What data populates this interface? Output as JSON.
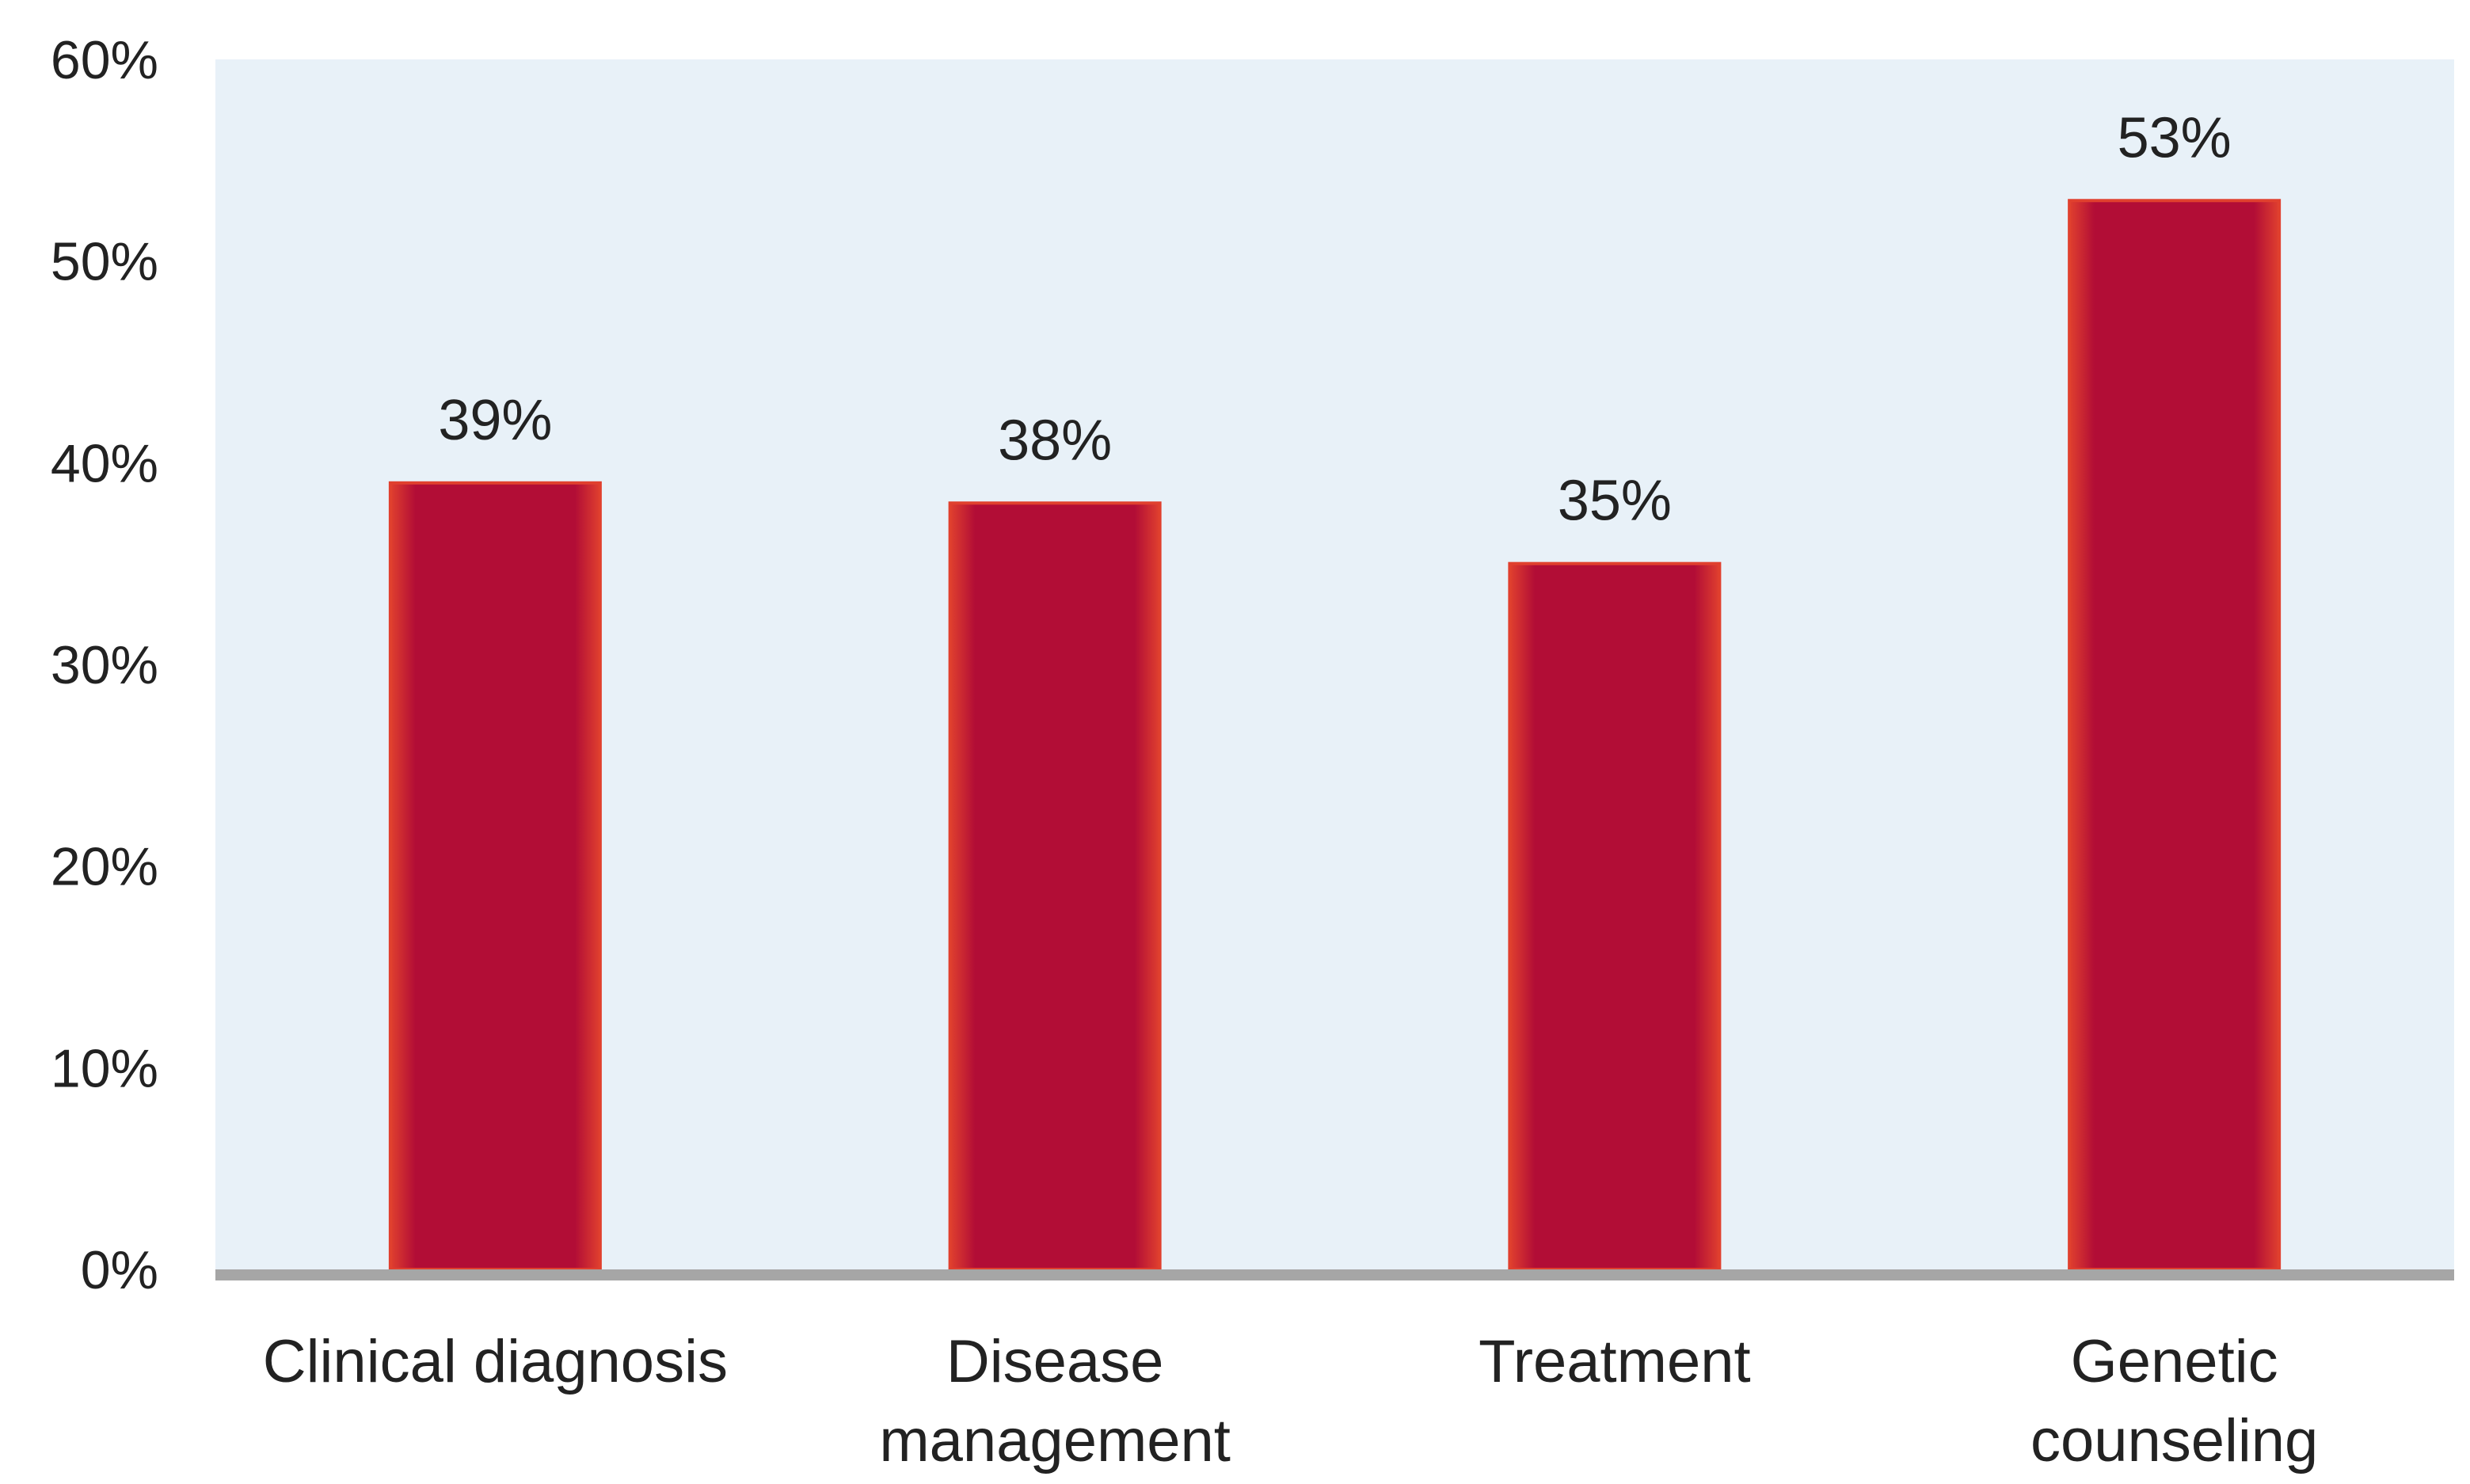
{
  "chart_data": {
    "type": "bar",
    "categories": [
      [
        "Clinical diagnosis"
      ],
      [
        "Disease",
        "management"
      ],
      [
        "Treatment"
      ],
      [
        "Genetic",
        "counseling"
      ]
    ],
    "values": [
      39,
      38,
      35,
      53
    ],
    "value_labels": [
      "39%",
      "38%",
      "35%",
      "53%"
    ],
    "yticks": [
      "0%",
      "10%",
      "20%",
      "30%",
      "40%",
      "50%",
      "60%"
    ],
    "ylim": [
      0,
      60
    ],
    "grid": false,
    "colors": {
      "bar": "#b20d36",
      "bar_edge": "#e0402e",
      "plot_background": "#e8f1f8",
      "baseline": "#a6a6a6"
    }
  }
}
